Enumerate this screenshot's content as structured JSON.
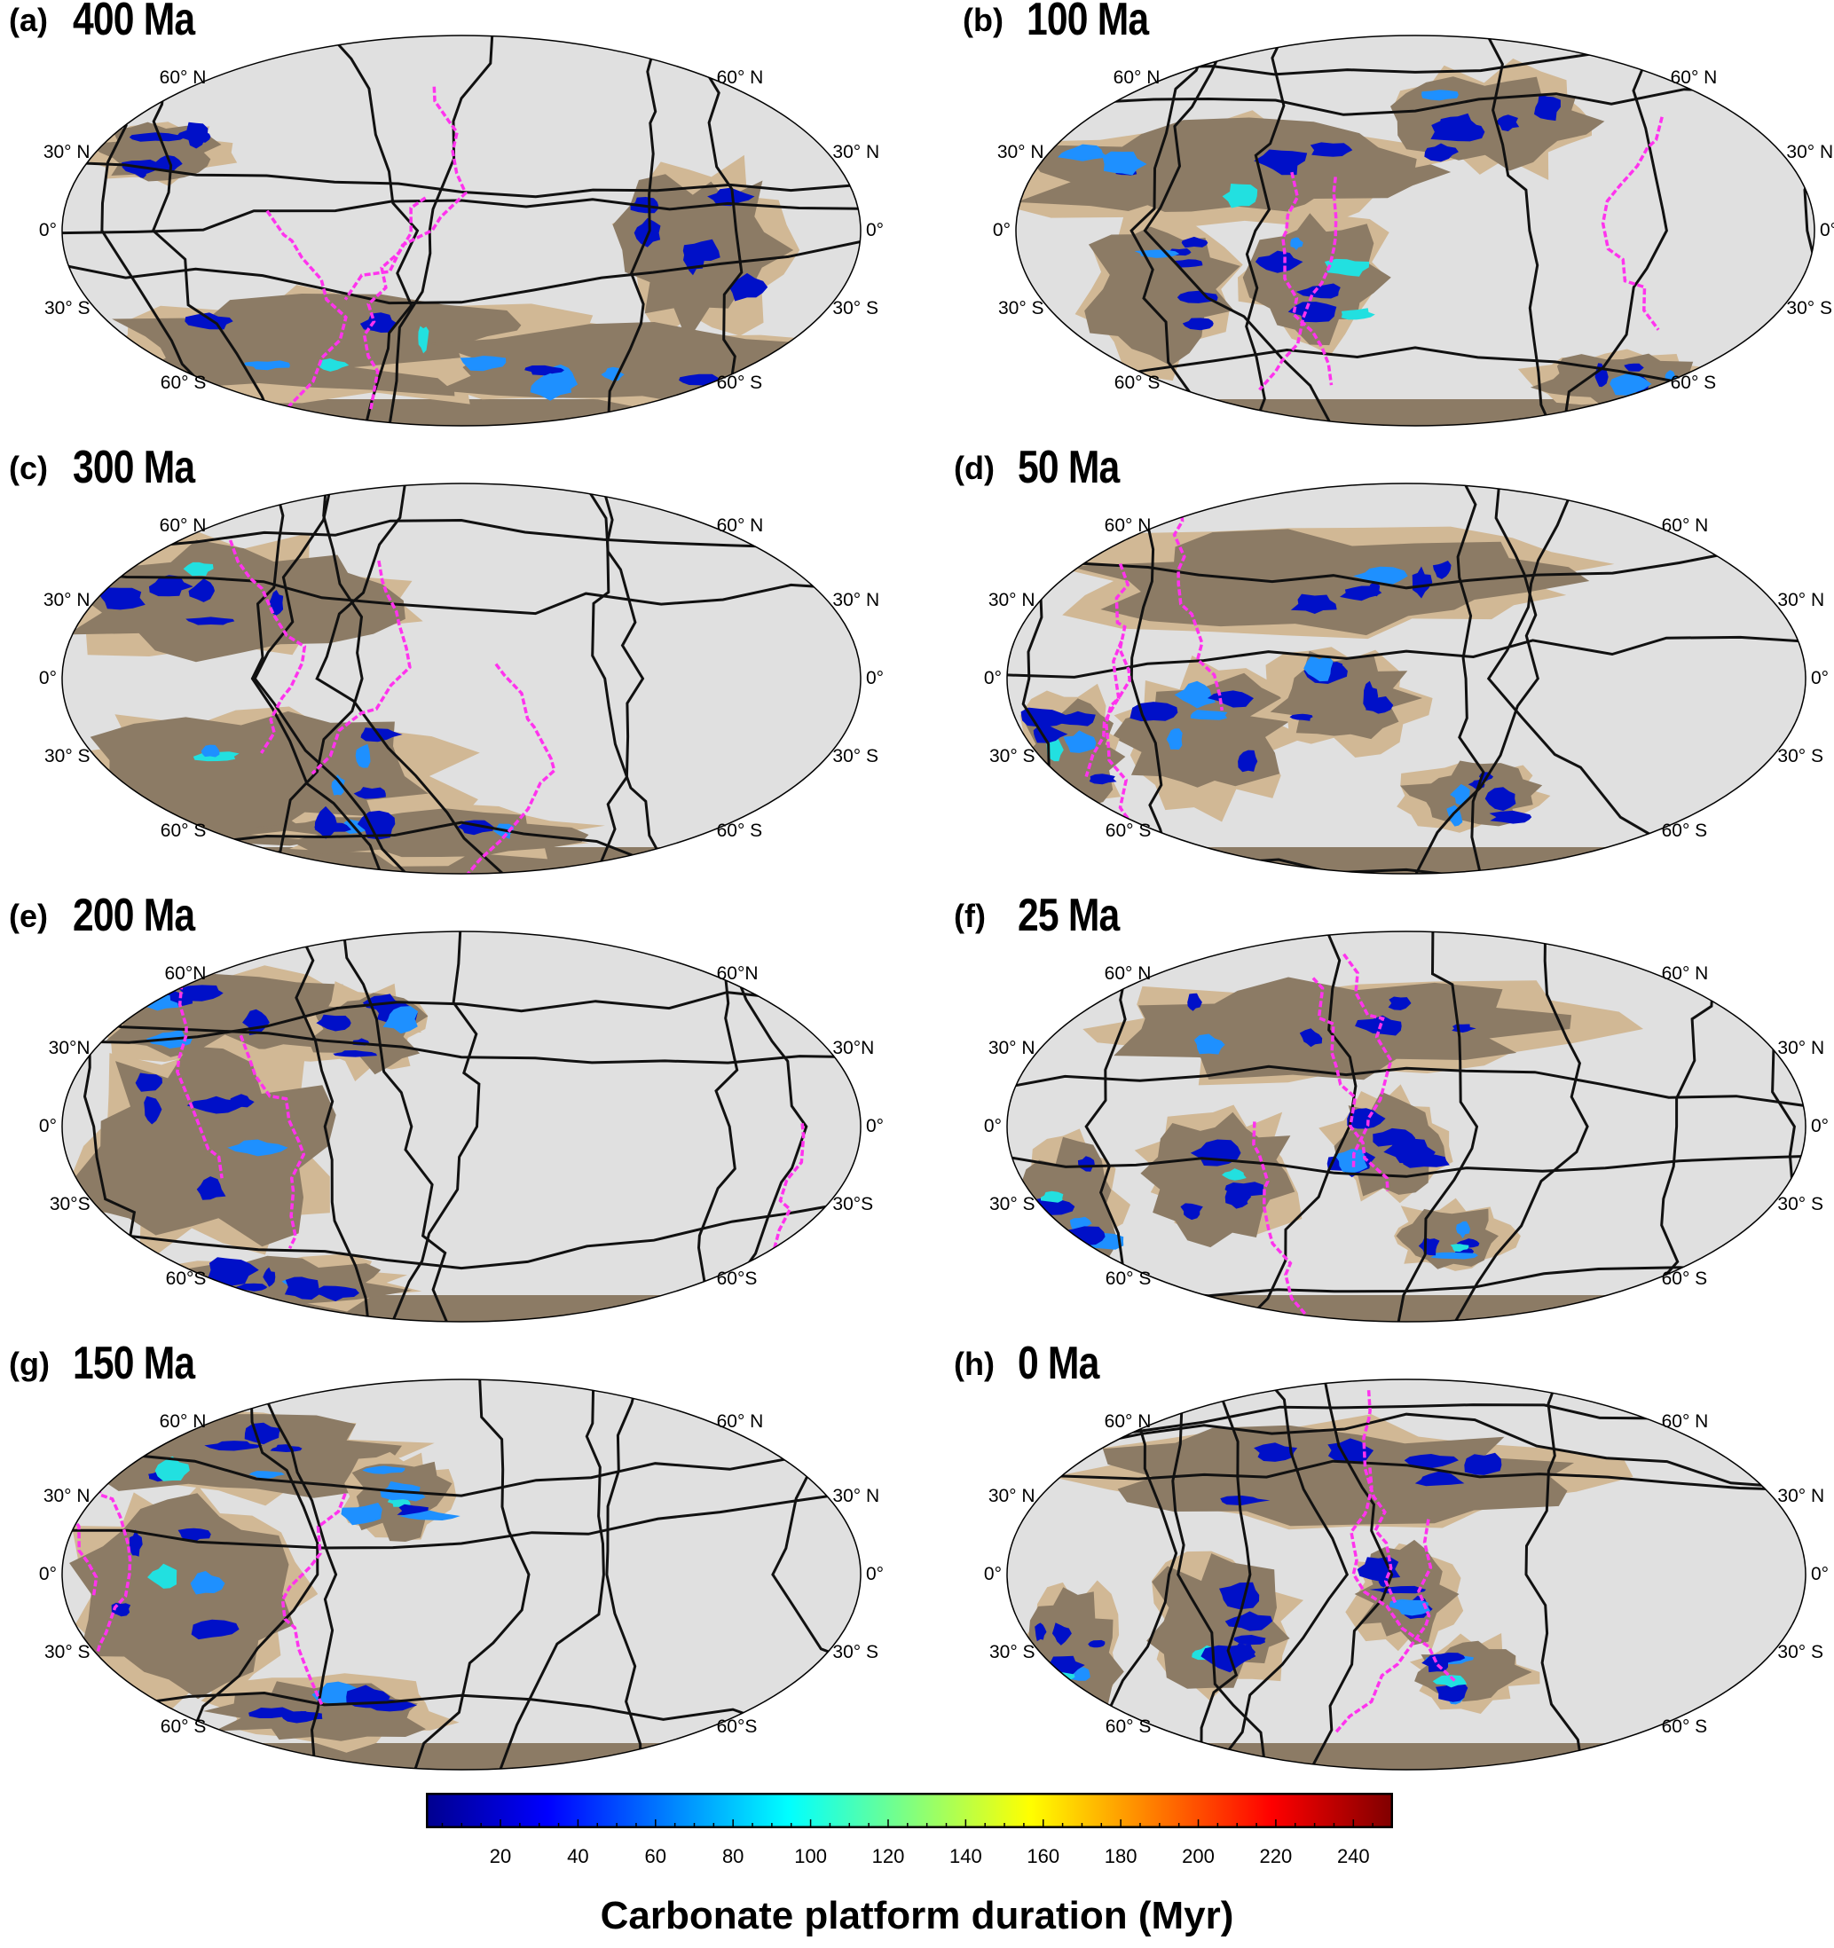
{
  "colors": {
    "ocean": "#e0e0e0",
    "land_deep": "#8c7b65",
    "shelf": "#d1b895",
    "subduction": "#ff33ee",
    "plate_boundary": "#111111",
    "carbonate_low": "#00008f",
    "carbonate_high": "#800000"
  },
  "panels": [
    {
      "label": "(a)",
      "title": "400 Ma",
      "lat_left": [
        "60° N",
        "30° N",
        "0°",
        "30° S",
        "60° S"
      ],
      "lat_right": [
        "60° N",
        "30° N",
        "0°",
        "30° S",
        "60° S"
      ]
    },
    {
      "label": "(b)",
      "title": "100 Ma",
      "lat_left": [
        "60° N",
        "30° N",
        "0°",
        "30° S",
        "60° S"
      ],
      "lat_right": [
        "60° N",
        "30° N",
        "0°",
        "30° S",
        "60° S"
      ]
    },
    {
      "label": "(c)",
      "title": "300 Ma",
      "lat_left": [
        "60° N",
        "30° N",
        "0°",
        "30° S",
        "60° S"
      ],
      "lat_right": [
        "60° N",
        "30° N",
        "0°",
        "30° S",
        "60° S"
      ]
    },
    {
      "label": "(d)",
      "title": "50 Ma",
      "lat_left": [
        "60° N",
        "30° N",
        "0°",
        "30° S",
        "60° S"
      ],
      "lat_right": [
        "60° N",
        "30° N",
        "0°",
        "30° S",
        "60° S"
      ]
    },
    {
      "label": "(e)",
      "title": "200 Ma",
      "lat_left": [
        "60°N",
        "30°N",
        "0°",
        "30°S",
        "60°S"
      ],
      "lat_right": [
        "60°N",
        "30°N",
        "0°",
        "30°S",
        "60°S"
      ]
    },
    {
      "label": "(f)",
      "title": "25 Ma",
      "lat_left": [
        "60° N",
        "30° N",
        "0°",
        "30° S",
        "60° S"
      ],
      "lat_right": [
        "60° N",
        "30° N",
        "0°",
        "30° S",
        "60° S"
      ]
    },
    {
      "label": "(g)",
      "title": "150 Ma",
      "lat_left": [
        "60° N",
        "30° N",
        "0°",
        "30° S",
        "60° S"
      ],
      "lat_right": [
        "60° N",
        "30° N",
        "0°",
        "30° S",
        "60°S"
      ]
    },
    {
      "label": "(h)",
      "title": "0 Ma",
      "lat_left": [
        "60° N",
        "30° N",
        "0°",
        "30° S",
        "60° S"
      ],
      "lat_right": [
        "60° N",
        "30° N",
        "0°",
        "30° S",
        "60° S"
      ]
    }
  ],
  "colorbar": {
    "title": "Carbonate platform duration (Myr)",
    "min": 1,
    "max": 250,
    "ticks": [
      "20",
      "40",
      "60",
      "80",
      "100",
      "120",
      "140",
      "160",
      "180",
      "200",
      "220",
      "240"
    ],
    "stops": [
      "#00008f",
      "#0000ff",
      "#0080ff",
      "#00ffff",
      "#80ff80",
      "#ffff00",
      "#ff8000",
      "#ff0000",
      "#800000"
    ]
  }
}
